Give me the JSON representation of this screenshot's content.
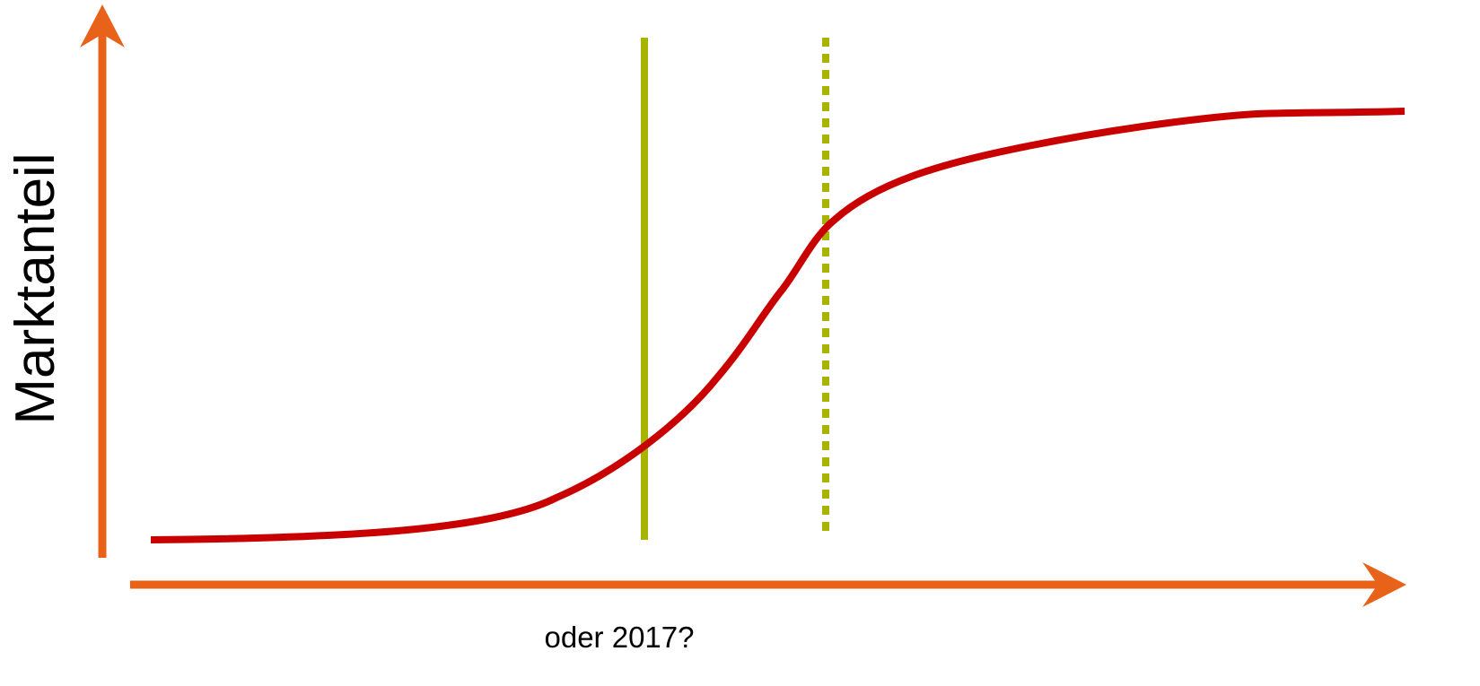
{
  "y_axis_label": "Marktanteil",
  "x_axis_label": "oder 2017?"
}
